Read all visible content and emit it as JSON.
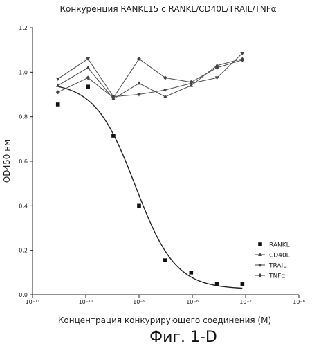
{
  "chart_data": {
    "type": "line",
    "title": "Конкуренция RANKL15 с RANKL/CD40L/TRAIL/TNFα",
    "xlabel": "Концентрация конкурирующего соединения (M)",
    "ylabel": "OD450 нм",
    "x_scale": "log",
    "xlim": [
      1e-11,
      1e-06
    ],
    "ylim": [
      0.0,
      1.2
    ],
    "x_ticks": [
      "10⁻¹¹",
      "10⁻¹⁰",
      "10⁻⁹",
      "10⁻⁸",
      "10⁻⁷",
      "10⁻⁶"
    ],
    "y_ticks": [
      "0.0",
      "0.2",
      "0.4",
      "0.6",
      "0.8",
      "1.0",
      "1.2"
    ],
    "legend_position": "right",
    "series": [
      {
        "name": "RANKL",
        "marker": "square",
        "points": [
          {
            "x": 3e-11,
            "y": 0.855
          },
          {
            "x": 1.1e-10,
            "y": 0.935
          },
          {
            "x": 3.3e-10,
            "y": 0.715
          },
          {
            "x": 1e-09,
            "y": 0.4
          },
          {
            "x": 3.1e-09,
            "y": 0.155
          },
          {
            "x": 9.5e-09,
            "y": 0.1
          },
          {
            "x": 2.9e-08,
            "y": 0.05
          },
          {
            "x": 8.7e-08,
            "y": 0.048
          }
        ],
        "fit_curve": {
          "top": 0.955,
          "bottom": 0.025,
          "log_ic50": -9.07,
          "hill": 1.15
        }
      },
      {
        "name": "CD40L",
        "marker": "triangle-up",
        "points": [
          {
            "x": 3e-11,
            "y": 0.94
          },
          {
            "x": 1.1e-10,
            "y": 1.02
          },
          {
            "x": 3.3e-10,
            "y": 0.88
          },
          {
            "x": 1e-09,
            "y": 0.95
          },
          {
            "x": 3.1e-09,
            "y": 0.89
          },
          {
            "x": 9.5e-09,
            "y": 0.94
          },
          {
            "x": 2.9e-08,
            "y": 1.03
          },
          {
            "x": 8.7e-08,
            "y": 1.06
          }
        ]
      },
      {
        "name": "TRAIL",
        "marker": "triangle-down",
        "points": [
          {
            "x": 3e-11,
            "y": 0.97
          },
          {
            "x": 1.1e-10,
            "y": 1.06
          },
          {
            "x": 3.3e-10,
            "y": 0.89
          },
          {
            "x": 1e-09,
            "y": 0.9
          },
          {
            "x": 3.1e-09,
            "y": 0.92
          },
          {
            "x": 9.5e-09,
            "y": 0.95
          },
          {
            "x": 2.9e-08,
            "y": 0.975
          },
          {
            "x": 8.7e-08,
            "y": 1.085
          }
        ]
      },
      {
        "name": "TNFα",
        "marker": "diamond",
        "points": [
          {
            "x": 3e-11,
            "y": 0.91
          },
          {
            "x": 1.1e-10,
            "y": 0.975
          },
          {
            "x": 3.3e-10,
            "y": 0.885
          },
          {
            "x": 1e-09,
            "y": 1.06
          },
          {
            "x": 3.1e-09,
            "y": 0.975
          },
          {
            "x": 9.5e-09,
            "y": 0.955
          },
          {
            "x": 2.9e-08,
            "y": 1.02
          },
          {
            "x": 8.7e-08,
            "y": 1.055
          }
        ]
      }
    ]
  },
  "figure": {
    "caption": "Фиг. 1-D"
  }
}
